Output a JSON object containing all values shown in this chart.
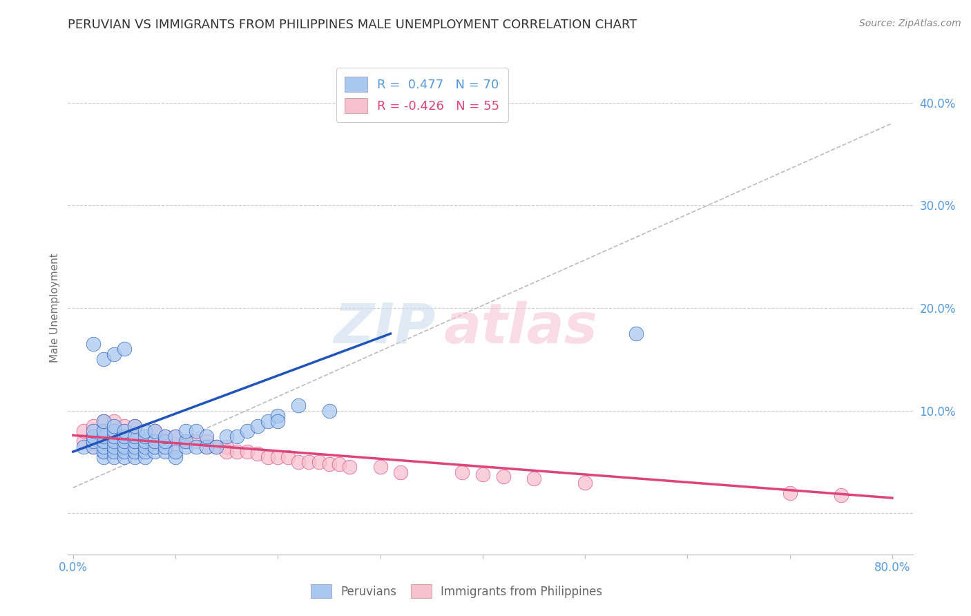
{
  "title": "PERUVIAN VS IMMIGRANTS FROM PHILIPPINES MALE UNEMPLOYMENT CORRELATION CHART",
  "source": "Source: ZipAtlas.com",
  "ylabel": "Male Unemployment",
  "r_blue": 0.477,
  "n_blue": 70,
  "r_pink": -0.426,
  "n_pink": 55,
  "xlim": [
    -0.005,
    0.82
  ],
  "ylim": [
    -0.04,
    0.44
  ],
  "xticks": [
    0.0,
    0.1,
    0.2,
    0.3,
    0.4,
    0.5,
    0.6,
    0.7,
    0.8
  ],
  "yticks": [
    0.0,
    0.1,
    0.2,
    0.3,
    0.4
  ],
  "ytick_labels": [
    "",
    "10.0%",
    "20.0%",
    "30.0%",
    "40.0%"
  ],
  "xtick_labels_show": [
    "0.0%",
    "80.0%"
  ],
  "color_blue": "#a8c8f0",
  "color_blue_line": "#2255bb",
  "color_pink": "#f8c0d0",
  "color_pink_line": "#dd4477",
  "color_dash": "#bbbbbb",
  "background_color": "#ffffff",
  "grid_color": "#cccccc",
  "axis_label_color": "#5599dd",
  "title_color": "#333333",
  "watermark_blue": "#ccddef",
  "watermark_pink": "#f5c5d5",
  "blue_line_x": [
    0.0,
    0.31
  ],
  "blue_line_y": [
    0.06,
    0.175
  ],
  "pink_line_x": [
    0.0,
    0.8
  ],
  "pink_line_y": [
    0.076,
    0.015
  ],
  "dash_line_x": [
    0.0,
    0.8
  ],
  "dash_line_y": [
    0.025,
    0.38
  ],
  "blue_points_x": [
    0.01,
    0.02,
    0.02,
    0.02,
    0.02,
    0.03,
    0.03,
    0.03,
    0.03,
    0.03,
    0.03,
    0.03,
    0.04,
    0.04,
    0.04,
    0.04,
    0.04,
    0.04,
    0.04,
    0.05,
    0.05,
    0.05,
    0.05,
    0.05,
    0.05,
    0.06,
    0.06,
    0.06,
    0.06,
    0.06,
    0.06,
    0.07,
    0.07,
    0.07,
    0.07,
    0.07,
    0.07,
    0.08,
    0.08,
    0.08,
    0.08,
    0.09,
    0.09,
    0.09,
    0.09,
    0.1,
    0.1,
    0.1,
    0.11,
    0.11,
    0.11,
    0.12,
    0.12,
    0.13,
    0.13,
    0.14,
    0.15,
    0.16,
    0.17,
    0.18,
    0.19,
    0.2,
    0.22,
    0.03,
    0.04,
    0.05,
    0.02,
    0.55,
    0.2,
    0.25
  ],
  "blue_points_y": [
    0.065,
    0.065,
    0.07,
    0.075,
    0.08,
    0.055,
    0.06,
    0.065,
    0.07,
    0.075,
    0.08,
    0.09,
    0.055,
    0.06,
    0.065,
    0.07,
    0.075,
    0.08,
    0.085,
    0.055,
    0.06,
    0.065,
    0.07,
    0.075,
    0.08,
    0.055,
    0.06,
    0.065,
    0.07,
    0.075,
    0.085,
    0.055,
    0.06,
    0.065,
    0.07,
    0.075,
    0.08,
    0.06,
    0.065,
    0.07,
    0.08,
    0.06,
    0.065,
    0.07,
    0.075,
    0.055,
    0.06,
    0.075,
    0.065,
    0.07,
    0.08,
    0.065,
    0.08,
    0.065,
    0.075,
    0.065,
    0.075,
    0.075,
    0.08,
    0.085,
    0.09,
    0.095,
    0.105,
    0.15,
    0.155,
    0.16,
    0.165,
    0.175,
    0.09,
    0.1
  ],
  "pink_points_x": [
    0.01,
    0.01,
    0.02,
    0.02,
    0.02,
    0.03,
    0.03,
    0.03,
    0.03,
    0.04,
    0.04,
    0.04,
    0.05,
    0.05,
    0.05,
    0.06,
    0.06,
    0.06,
    0.07,
    0.07,
    0.08,
    0.08,
    0.08,
    0.09,
    0.09,
    0.1,
    0.1,
    0.11,
    0.12,
    0.13,
    0.13,
    0.14,
    0.15,
    0.15,
    0.16,
    0.17,
    0.18,
    0.19,
    0.2,
    0.21,
    0.22,
    0.23,
    0.24,
    0.25,
    0.26,
    0.27,
    0.3,
    0.32,
    0.38,
    0.4,
    0.42,
    0.45,
    0.5,
    0.7,
    0.75
  ],
  "pink_points_y": [
    0.07,
    0.08,
    0.065,
    0.075,
    0.085,
    0.06,
    0.07,
    0.08,
    0.09,
    0.065,
    0.075,
    0.09,
    0.065,
    0.075,
    0.085,
    0.065,
    0.075,
    0.085,
    0.065,
    0.075,
    0.065,
    0.07,
    0.08,
    0.065,
    0.075,
    0.065,
    0.075,
    0.07,
    0.07,
    0.07,
    0.065,
    0.065,
    0.065,
    0.06,
    0.06,
    0.06,
    0.058,
    0.055,
    0.055,
    0.055,
    0.05,
    0.05,
    0.05,
    0.048,
    0.048,
    0.045,
    0.045,
    0.04,
    0.04,
    0.038,
    0.036,
    0.034,
    0.03,
    0.02,
    0.018
  ]
}
